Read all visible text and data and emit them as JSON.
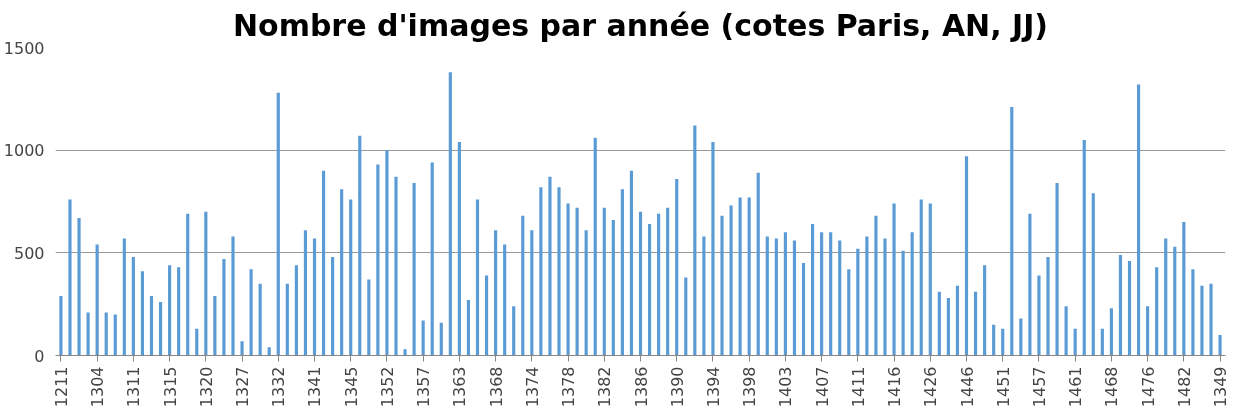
{
  "chart_data": {
    "type": "bar",
    "title": "Nombre d'images par année (cotes Paris, AN, JJ)",
    "categories": [
      "1211",
      null,
      null,
      null,
      "1304",
      null,
      null,
      null,
      "1311",
      null,
      null,
      null,
      "1315",
      null,
      null,
      null,
      "1320",
      null,
      null,
      null,
      "1327",
      null,
      null,
      null,
      "1332",
      null,
      null,
      null,
      "1341",
      null,
      null,
      null,
      "1345",
      null,
      null,
      null,
      "1352",
      null,
      null,
      null,
      "1357",
      null,
      null,
      null,
      "1363",
      null,
      null,
      null,
      "1368",
      null,
      null,
      null,
      "1374",
      null,
      null,
      null,
      "1378",
      null,
      null,
      null,
      "1382",
      null,
      null,
      null,
      "1386",
      null,
      null,
      null,
      "1390",
      null,
      null,
      null,
      "1394",
      null,
      null,
      null,
      "1398",
      null,
      null,
      null,
      "1403",
      null,
      null,
      null,
      "1407",
      null,
      null,
      null,
      "1411",
      null,
      null,
      null,
      "1416",
      null,
      null,
      null,
      "1426",
      null,
      null,
      null,
      "1446",
      null,
      null,
      null,
      "1451",
      null,
      null,
      null,
      "1457",
      null,
      null,
      null,
      "1461",
      null,
      null,
      null,
      "1468",
      null,
      null,
      null,
      "1476",
      null,
      null,
      null,
      "1482",
      null,
      null,
      null,
      "1349"
    ],
    "values": [
      290,
      760,
      670,
      210,
      540,
      210,
      200,
      570,
      480,
      410,
      290,
      260,
      440,
      430,
      690,
      130,
      700,
      290,
      470,
      580,
      70,
      420,
      350,
      40,
      1280,
      350,
      440,
      610,
      570,
      900,
      480,
      810,
      760,
      1070,
      370,
      930,
      1000,
      870,
      30,
      840,
      170,
      940,
      160,
      1380,
      1040,
      270,
      760,
      390,
      610,
      540,
      240,
      680,
      610,
      820,
      870,
      820,
      740,
      720,
      610,
      1060,
      720,
      660,
      810,
      900,
      700,
      640,
      690,
      720,
      860,
      380,
      1120,
      580,
      1040,
      680,
      730,
      770,
      770,
      890,
      580,
      570,
      600,
      560,
      450,
      640,
      600,
      600,
      560,
      420,
      520,
      580,
      680,
      570,
      740,
      510,
      600,
      760,
      740,
      310,
      280,
      340,
      970,
      310,
      440,
      150,
      130,
      1210,
      180,
      690,
      390,
      480,
      840,
      240,
      130,
      1050,
      790,
      130,
      230,
      490,
      460,
      1320,
      240,
      430,
      570,
      530,
      650,
      420,
      340,
      350,
      100
    ],
    "color": "#5b9bd5",
    "ylim": [
      0,
      1500
    ],
    "yticks": [
      0,
      500,
      1000,
      1500
    ],
    "grid": "y"
  }
}
